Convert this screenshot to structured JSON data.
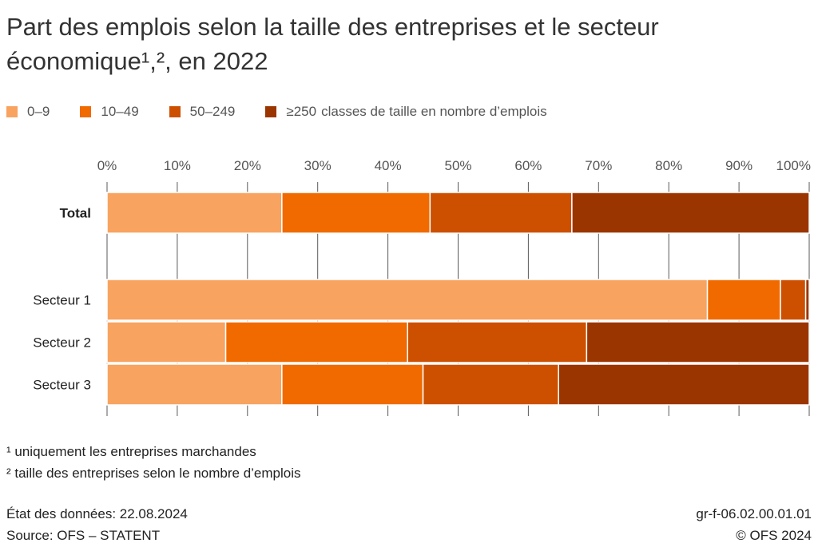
{
  "title_line1": "Part des emplois selon la taille des entreprises et le secteur",
  "title_line2": "économique¹,², en 2022",
  "footnotes": [
    "¹ uniquement les entreprises marchandes",
    "² taille des entreprises selon le nombre d’emplois"
  ],
  "footer": {
    "data_status": "État des données: 22.08.2024",
    "source": "Source: OFS – STATENT",
    "code": "gr-f-06.02.00.01.01",
    "copyright": "© OFS 2024"
  },
  "chart_data": {
    "type": "bar",
    "orientation": "horizontal",
    "stacked": true,
    "categories": [
      "Total",
      "Secteur 1",
      "Secteur 2",
      "Secteur 3"
    ],
    "bold_categories": [
      "Total"
    ],
    "legend_suffix": "classes de taille en nombre d’emplois",
    "series": [
      {
        "name": "0–9",
        "color": "#f8a35f",
        "values": [
          24.9,
          85.5,
          16.9,
          24.9
        ]
      },
      {
        "name": "10–49",
        "color": "#f06a00",
        "values": [
          21.1,
          10.4,
          25.9,
          20.1
        ]
      },
      {
        "name": "50–249",
        "color": "#cc5000",
        "values": [
          20.2,
          3.6,
          25.5,
          19.3
        ]
      },
      {
        "name": "≥250",
        "color": "#9b3500",
        "values": [
          33.8,
          0.5,
          31.7,
          35.7
        ]
      }
    ],
    "xlim": [
      0,
      100
    ],
    "xticks": [
      "0%",
      "10%",
      "20%",
      "30%",
      "40%",
      "50%",
      "60%",
      "70%",
      "80%",
      "90%",
      "100%"
    ],
    "grid": true,
    "legend_position": "top-left"
  }
}
